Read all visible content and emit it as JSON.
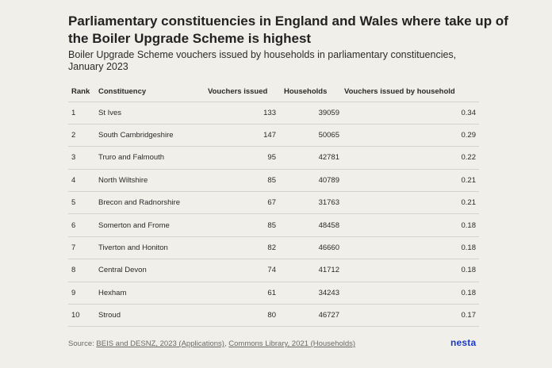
{
  "title": "Parliamentary constituencies in England and Wales where take up of the Boiler Upgrade Scheme is highest",
  "subtitle": "Boiler Upgrade Scheme vouchers issued by households in parliamentary constituencies, January 2023",
  "source": {
    "prefix": "Source: ",
    "link1": "BEIS and DESNZ, 2023 (Applications)",
    "sep": ", ",
    "link2": "Commons Library, 2021 (Households)"
  },
  "logo": "nesta",
  "chart_data": {
    "type": "table",
    "title": "Parliamentary constituencies in England and Wales where take up of the Boiler Upgrade Scheme is highest",
    "subtitle": "Boiler Upgrade Scheme vouchers issued by households in parliamentary constituencies, January 2023",
    "columns": [
      "Rank",
      "Constituency",
      "Vouchers issued",
      "Households",
      "Vouchers issued by household"
    ],
    "rows": [
      [
        "1",
        "St Ives",
        "133",
        "39059",
        "0.34"
      ],
      [
        "2",
        "South Cambridgeshire",
        "147",
        "50065",
        "0.29"
      ],
      [
        "3",
        "Truro and Falmouth",
        "95",
        "42781",
        "0.22"
      ],
      [
        "4",
        "North Wiltshire",
        "85",
        "40789",
        "0.21"
      ],
      [
        "5",
        "Brecon and Radnorshire",
        "67",
        "31763",
        "0.21"
      ],
      [
        "6",
        "Somerton and Frome",
        "85",
        "48458",
        "0.18"
      ],
      [
        "7",
        "Tiverton and Honiton",
        "82",
        "46660",
        "0.18"
      ],
      [
        "8",
        "Central Devon",
        "74",
        "41712",
        "0.18"
      ],
      [
        "9",
        "Hexham",
        "61",
        "34243",
        "0.18"
      ],
      [
        "10",
        "Stroud",
        "80",
        "46727",
        "0.17"
      ]
    ]
  }
}
